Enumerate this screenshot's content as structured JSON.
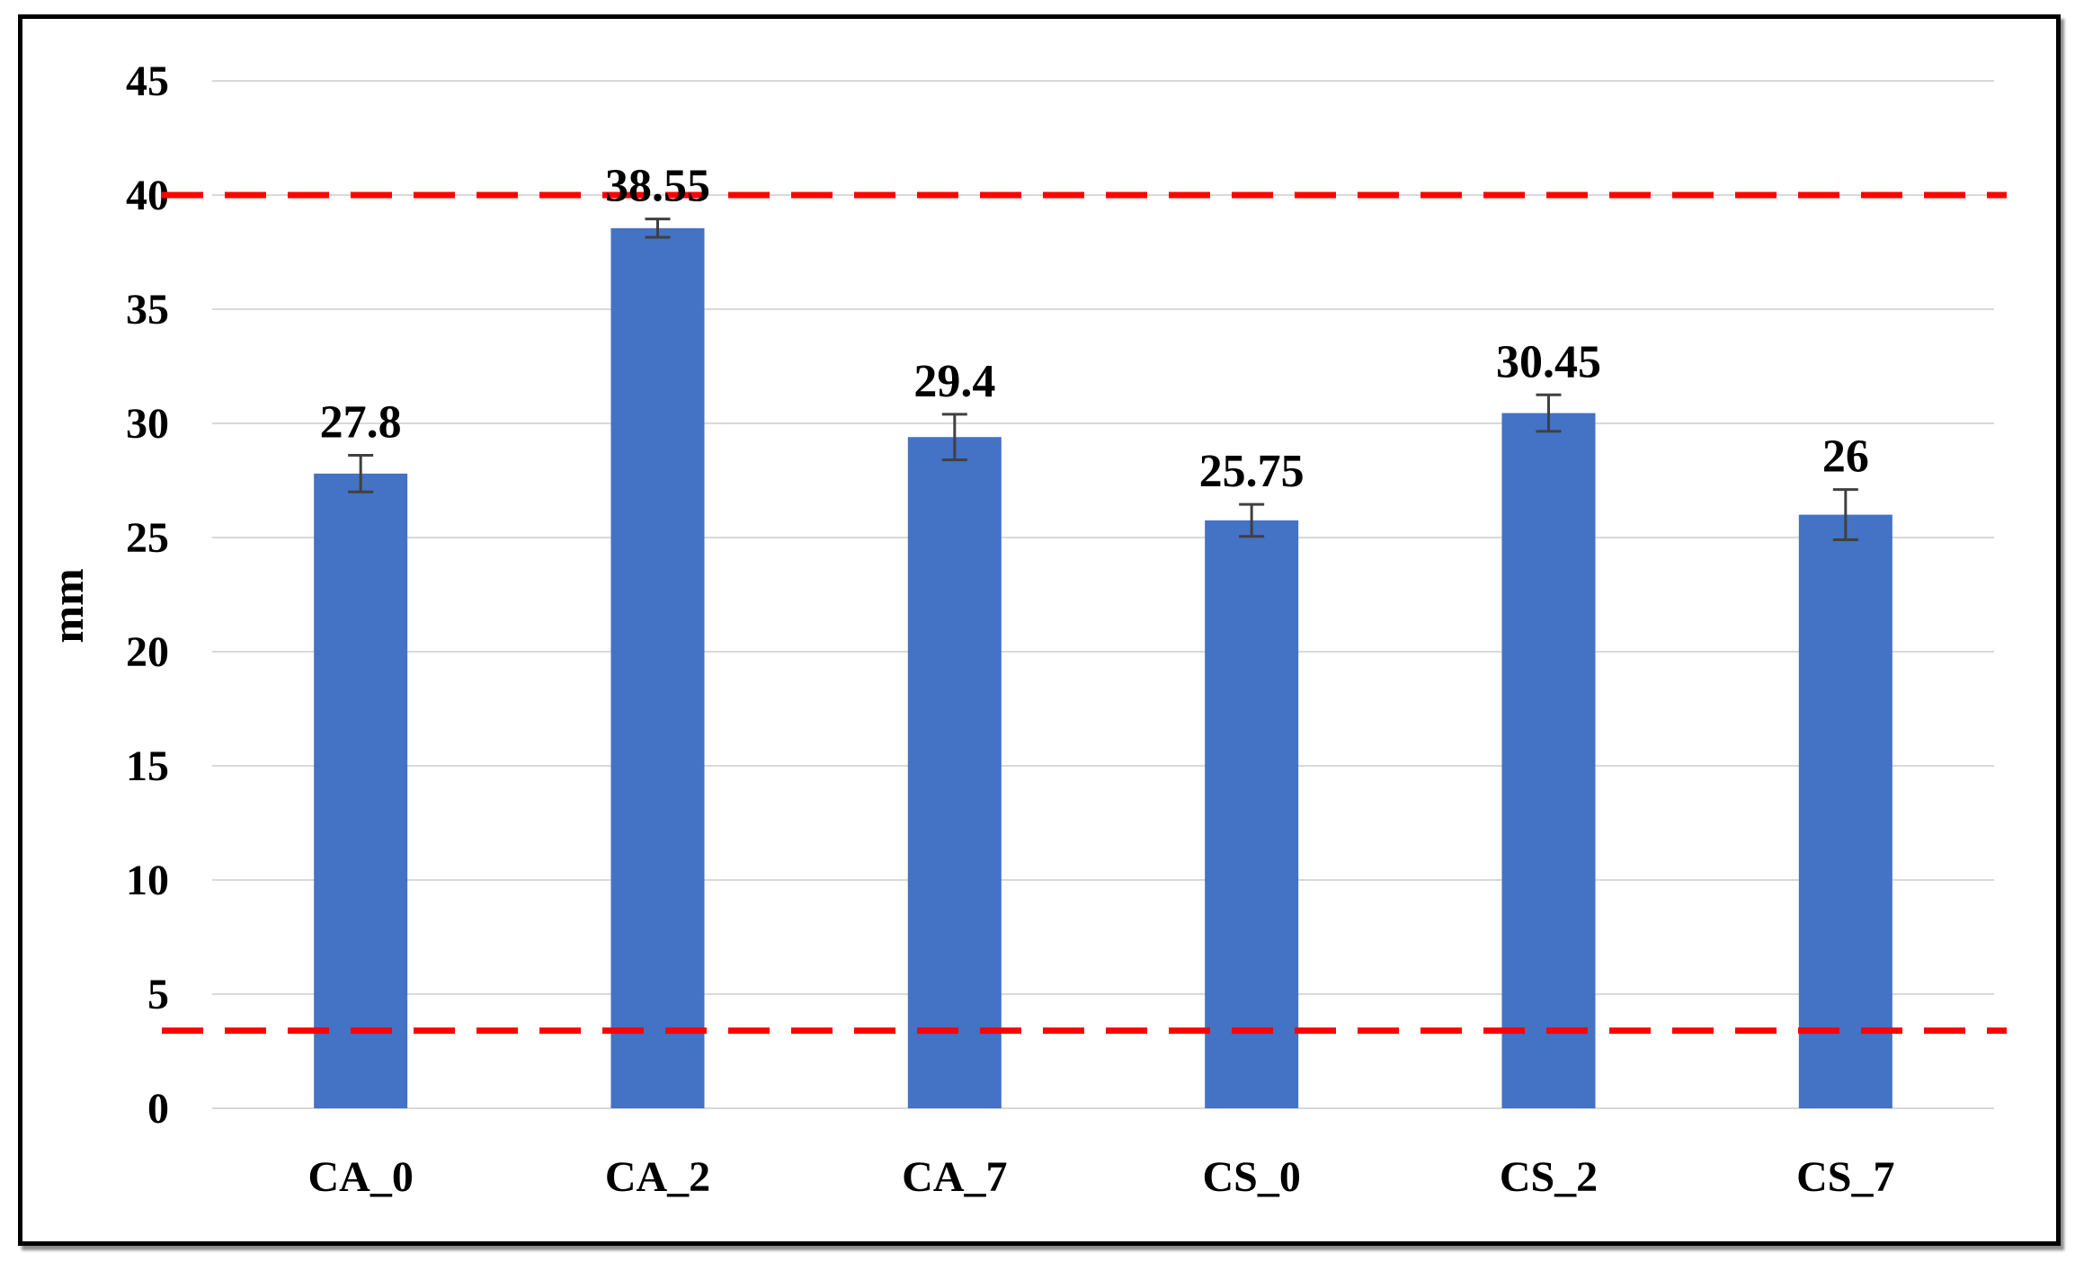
{
  "chart_data": {
    "type": "bar",
    "title": "",
    "xlabel": "",
    "ylabel": "mm",
    "ylim": [
      0,
      45
    ],
    "yticks": [
      0,
      5,
      10,
      15,
      20,
      25,
      30,
      35,
      40,
      45
    ],
    "grid": true,
    "categories": [
      "CA_0",
      "CA_2",
      "CA_7",
      "CS_0",
      "CS_2",
      "CS_7"
    ],
    "values": [
      27.8,
      38.55,
      29.4,
      25.75,
      30.45,
      26
    ],
    "value_labels": [
      "27.8",
      "38.55",
      "29.4",
      "25.75",
      "30.45",
      "26"
    ],
    "error_bars": [
      0.8,
      0.4,
      1.0,
      0.7,
      0.8,
      1.1
    ],
    "reference_lines": [
      {
        "y": 40,
        "style": "dashed",
        "color": "#ff0000"
      },
      {
        "y": 3.4,
        "style": "dashed",
        "color": "#ff0000"
      }
    ],
    "colors": {
      "bar": "#4472c4",
      "grid": "#d9d9d9",
      "error_bar": "#404040",
      "reference_line": "#ff0000"
    }
  }
}
